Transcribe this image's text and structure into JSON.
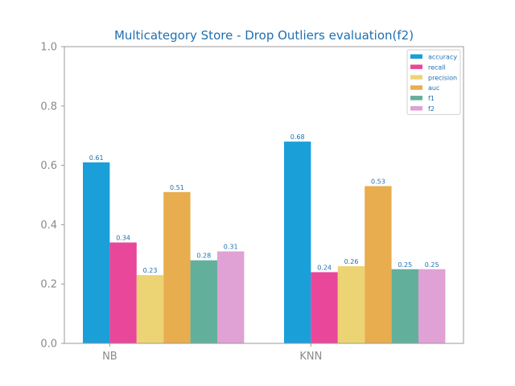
{
  "chart_data": {
    "type": "bar",
    "title": "Multicategory Store - Drop Outliers evaluation(f2)",
    "xlabel": "",
    "ylabel": "",
    "ylim": [
      0,
      1.0
    ],
    "yticks": [
      "0.0",
      "0.2",
      "0.4",
      "0.6",
      "0.8",
      "1.0"
    ],
    "categories": [
      "NB",
      "KNN"
    ],
    "series": [
      {
        "name": "accuracy",
        "color": "#1a9fd9",
        "values": [
          0.61,
          0.68
        ],
        "labels": [
          "0.61",
          "0.68"
        ]
      },
      {
        "name": "recall",
        "color": "#e9479a",
        "values": [
          0.34,
          0.24
        ],
        "labels": [
          "0.34",
          "0.24"
        ]
      },
      {
        "name": "precision",
        "color": "#ecd374",
        "values": [
          0.23,
          0.26
        ],
        "labels": [
          "0.23",
          "0.26"
        ]
      },
      {
        "name": "auc",
        "color": "#e8ad4e",
        "values": [
          0.51,
          0.53
        ],
        "labels": [
          "0.51",
          "0.53"
        ]
      },
      {
        "name": "f1",
        "color": "#62b09b",
        "values": [
          0.28,
          0.25
        ],
        "labels": [
          "0.28",
          "0.25"
        ]
      },
      {
        "name": "f2",
        "color": "#e0a1d5",
        "values": [
          0.31,
          0.25
        ],
        "labels": [
          "0.31",
          "0.25"
        ]
      }
    ],
    "grid": false,
    "legend": "top-right"
  }
}
